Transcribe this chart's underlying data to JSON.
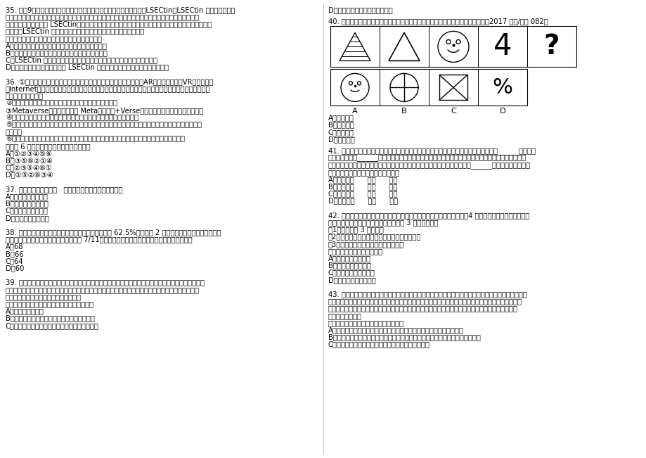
{
  "bg_color": "#ffffff",
  "text_color": "#000000",
  "font_size_body": 7.2,
  "left_col_lines": [
    "35. 据怈9，科学家已在肝脏中找到了真正清除炎症细胞的（功臣）之一LSECtin。LSECtin 能选择性地识别",
    "出被激活的炎症细胞，有效制止它们繁殖并抑制它们产生炎症因子。科学家利用最尖端的基因剖除技术，",
    "从动物机体内完全去掉 LSECtin，发现机体内的炎症细胞明显增多，炎症因子也会随之急剧增加。人们由",
    "此推测，LSECtin 很有可能发展成为治疗肝脏炎性疾病的特效药物。",
    "以下各项判断如果为真，则哪项最能支持上述推测：",
    "A、这项重要的研究成果进一步丰富了肝脏免疫学理论",
    "B、肝脏能清除不断从血液中循环到肝脏内的炎症细胞",
    "C、LSECtin 是迄今为止第一个被发现的在肝脏中特异表达的免疫调控分子",
    "D、给患有急性肝炎的动物注入 LSECtin 后，发现其肝脏内的炎症因子明显减少",
    "",
    "36. ①现在，「元宇宙」将不再是一种想象，人们正在利用增强现实（AR）、號拟现实（VR）和互联网",
    "（Internet）的技术手段，使现实中的人类在数字化技术的加持下进入元宇宙，凭借网络重新定义自己，",
    "体验一种全新的生活",
    "②对多数人来说，何谓元宇宙，这是必须首先弄清楚的问题",
    "③Metaverse（元宇宙）即是 Meta（超越）+Verse（宇宙），指超越现实的號拟世界",
    "④这个世界能够通过高度真实感的还原技术，为用户带来沉浸式的体验",
    "⑤人们在这个號拟世界中会有一个全新的身份，能够构建新的社交体系，能够按照这个身份不间断地（生",
    "活下去）",
    "⑥电影《头号玩家》里的（绿洲）、动漫《刀剑神域》中的沉浸號拟世界，就是想象中的元宇宙",
    "将以上 6 个句子重新排列，语序正确的是：",
    "A、①②③④⑤⑥",
    "B、③⑤⑥②①④",
    "C、②③⑤④⑥①",
    "D、①⑤②⑥③④",
    "",
    "37. 脚：车胎：履带与（   ）在内在逻辑关系上最为相似。",
    "A、罗盘：日晗：星空",
    "B、毛笔：眼睛：手指",
    "C、飞镶：子弹：鱼雷",
    "D、镜子：灯光：清水",
    "",
    "38. 某单位原拥有中级及以上职称的职工占职工总数的 62.5%，现又有 2 名职工评上中级职称，之后该单",
    "位拥有中级及以上职称的人数占总人数的 7/11。则该单位原来有多少名职称在中级以下的职工：",
    "A、68",
    "B、66",
    "C、64",
    "D、60",
    "",
    "39. 绿色消费：也称可持续消费，是指一种以适度节制消费，避免或减少对环境的破坏，崇尚自然和保护",
    "生态等为特征的新型消费行为和过程。绿色消费不仅包括绿色产品，还包括物资的回收利用，能源的有效",
    "利用，对生存环境、物种环境的保护等。",
    "根据上述定义，下列最符合绿色消费理念的是：",
    "A、多购买绿色植物",
    "B、购物时尽量选择包装少或者没有包装的商品",
    "C、为了达到保护动物的目的，提倡在家中养宰物"
  ],
  "right_col_top": "D、购物时选择价格最便宜的商品",
  "q40_title": "40. 从所给的四个选项中，选择最合适的一个填入问号处，使之呈现一定的规律性【2017 联考/安徽 082】",
  "q40_choices": [
    "A、如图所示",
    "B、如图所示",
    "C、如图所示",
    "D、如图所示"
  ],
  "right_col_lines": [
    "41. 没有无用的知识，只有还没派上用场的知识。人们往往觉得既然用不上，何必为那些______的东西浪",
    "费时间。可他们______了知识之间的相互联系。知识是关于世间万物的信息，获得一种知识相当于多了",
    "一个看世界的角度，从这个角度看过去，一些原有的认识会发生改变，从而又______出新的问题和灵感。",
    "依次填入画横线部分最恰当的一项是：",
    "A、细枝末节      忽略      激发",
    "B、繁文缛节      掩盖      萌生",
    "C、零零星星      忘记      诞生",
    "D、杂乱无章      淡化      进发",
    "",
    "42. 某单位有南、北两个绿化区，拟在其中种植一些果树。员工们推荐了4 种果树备选：杏树、桃树、苹",
    "果、柿子。根据实际情况，还需满足以下 3 项种植要求：",
    "（1）每区种植 3 种果树；",
    "（2）至少要在一个绿化区同时种植杏树和苹果；",
    "（3）种植桃树的绿化区也要种植柿子。",
    "下列选项中，一定错误的是：",
    "A、两个区都种有桃树",
    "B、两个区都种有苹果",
    "C、只有一个区种有杏树",
    "D、只有一个区种有苹果",
    "",
    "43. 主流观点认为，气候变化是人类双足行走的主要驱动力。几百万年前，非洲森林的面积开始缩减，草",
    "原面积大量增长。在树木很少的环境中，双足行走的意义很明显：站起来，能让人类祖先的视线越过生长",
    "丰茂的草，看到猎食者和猎物。因此，草原面积大量增长使得善于站立的祖先更有可能存活，他们的基",
    "因得以传承下来。",
    "以下哪项如果为真，最能削弱上述论证：",
    "A、人类祖先从四脚行走到双足行走的过程中，多处身体结构发生了转变",
    "B、在发现早期双足行走人类化石的区域，还发现了大量同时代的森林动植物化石",
    "C、新生儿表现出一些人类祖先曾经在树上居住的迁象"
  ]
}
